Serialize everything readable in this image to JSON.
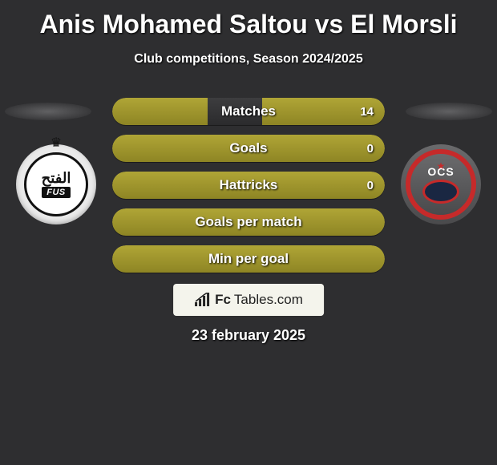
{
  "title": "Anis Mohamed Saltou vs El Morsli",
  "subtitle": "Club competitions, Season 2024/2025",
  "date": "23 february 2025",
  "footer": {
    "prefix": "Fc",
    "suffix": "Tables.com"
  },
  "colors": {
    "bar_fill": "#9a9128",
    "bar_bg": "#343436",
    "page_bg": "#2e2e30",
    "crest_right_accent": "#c62a2a",
    "crest_right_ball": "#1a2742"
  },
  "crest_left": {
    "crown": "♛",
    "arabic": "الفتح",
    "tag": "FUS"
  },
  "crest_right": {
    "text": "OCS",
    "star": "★"
  },
  "stats": [
    {
      "label": "Matches",
      "left_val": "",
      "right_val": "14",
      "left_pct": 35,
      "right_pct": 45,
      "mode": "split"
    },
    {
      "label": "Goals",
      "left_val": "",
      "right_val": "0",
      "left_pct": 100,
      "right_pct": 0,
      "mode": "full"
    },
    {
      "label": "Hattricks",
      "left_val": "",
      "right_val": "0",
      "left_pct": 100,
      "right_pct": 0,
      "mode": "full"
    },
    {
      "label": "Goals per match",
      "left_val": "",
      "right_val": "",
      "left_pct": 100,
      "right_pct": 0,
      "mode": "full"
    },
    {
      "label": "Min per goal",
      "left_val": "",
      "right_val": "",
      "left_pct": 100,
      "right_pct": 0,
      "mode": "full"
    }
  ]
}
